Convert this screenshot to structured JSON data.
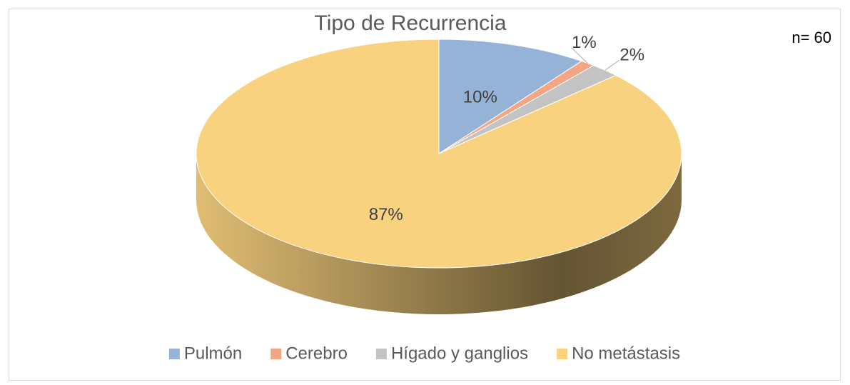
{
  "chart_data": {
    "type": "pie",
    "title": "Tipo de Recurrencia",
    "annotation": "n= 60",
    "categories": [
      "Pulmón",
      "Cerebro",
      "Hígado y ganglios",
      "No metástasis"
    ],
    "values": [
      10,
      1,
      2,
      87
    ],
    "value_labels": [
      "10%",
      "1%",
      "2%",
      "87%"
    ],
    "colors": [
      "#95b3d7",
      "#f4a583",
      "#c3c3c3",
      "#f9d27f"
    ],
    "legend": "bottom"
  }
}
